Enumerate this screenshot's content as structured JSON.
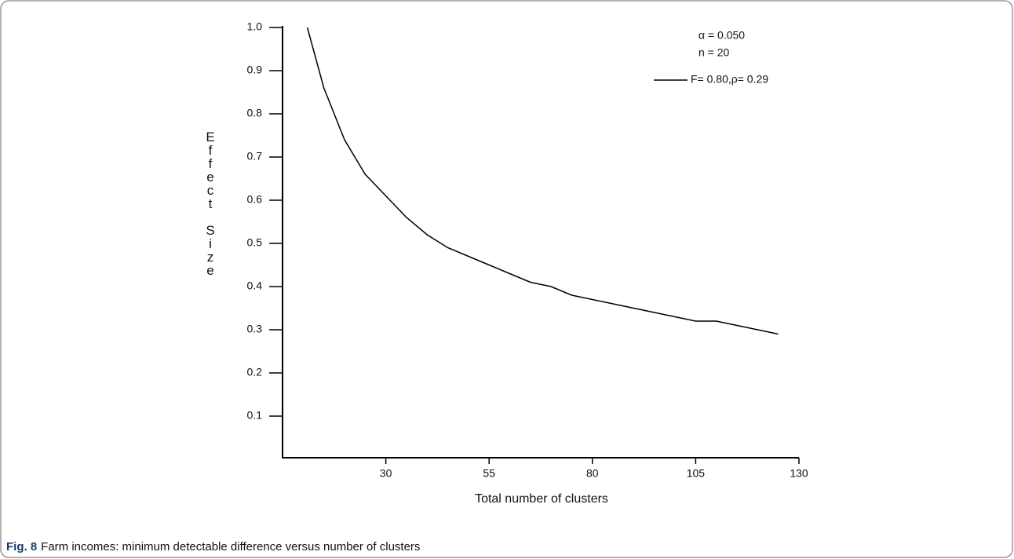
{
  "chart_data": {
    "type": "line",
    "x_label": "Total number of clusters",
    "y_label": "Effect Size",
    "annotations": [
      "α = 0.050",
      "n = 20"
    ],
    "x": [
      11,
      15,
      20,
      25,
      30,
      35,
      40,
      45,
      50,
      55,
      60,
      65,
      70,
      75,
      80,
      85,
      90,
      95,
      100,
      105,
      110,
      115,
      120,
      125
    ],
    "series": [
      {
        "name": "F= 0.80,ρ= 0.29",
        "color": "#000000",
        "values": [
          1.0,
          0.86,
          0.74,
          0.66,
          0.61,
          0.56,
          0.52,
          0.49,
          0.47,
          0.45,
          0.43,
          0.41,
          0.4,
          0.38,
          0.37,
          0.36,
          0.35,
          0.34,
          0.33,
          0.32,
          0.32,
          0.31,
          0.3,
          0.29
        ]
      }
    ],
    "xlim": [
      5,
      130
    ],
    "xticks": [
      30,
      55,
      80,
      105,
      130
    ],
    "ylim": [
      0,
      1.0
    ],
    "yticks": [
      {
        "value": 0.1,
        "label": "0.1"
      },
      {
        "value": 0.2,
        "label": "0.2"
      },
      {
        "value": 0.3,
        "label": "0.3"
      },
      {
        "value": 0.4,
        "label": "0.4"
      },
      {
        "value": 0.5,
        "label": "0.5"
      },
      {
        "value": 0.6,
        "label": "0.6"
      },
      {
        "value": 0.7,
        "label": "0.7"
      },
      {
        "value": 0.8,
        "label": "0.8"
      },
      {
        "value": 0.9,
        "label": "0.9"
      },
      {
        "value": 1.0,
        "label": "1.0"
      }
    ],
    "grid": false,
    "legend": "upper right"
  },
  "figure_caption": {
    "label": "Fig. 8",
    "text": "Farm incomes: minimum detectable difference versus number of clusters"
  }
}
